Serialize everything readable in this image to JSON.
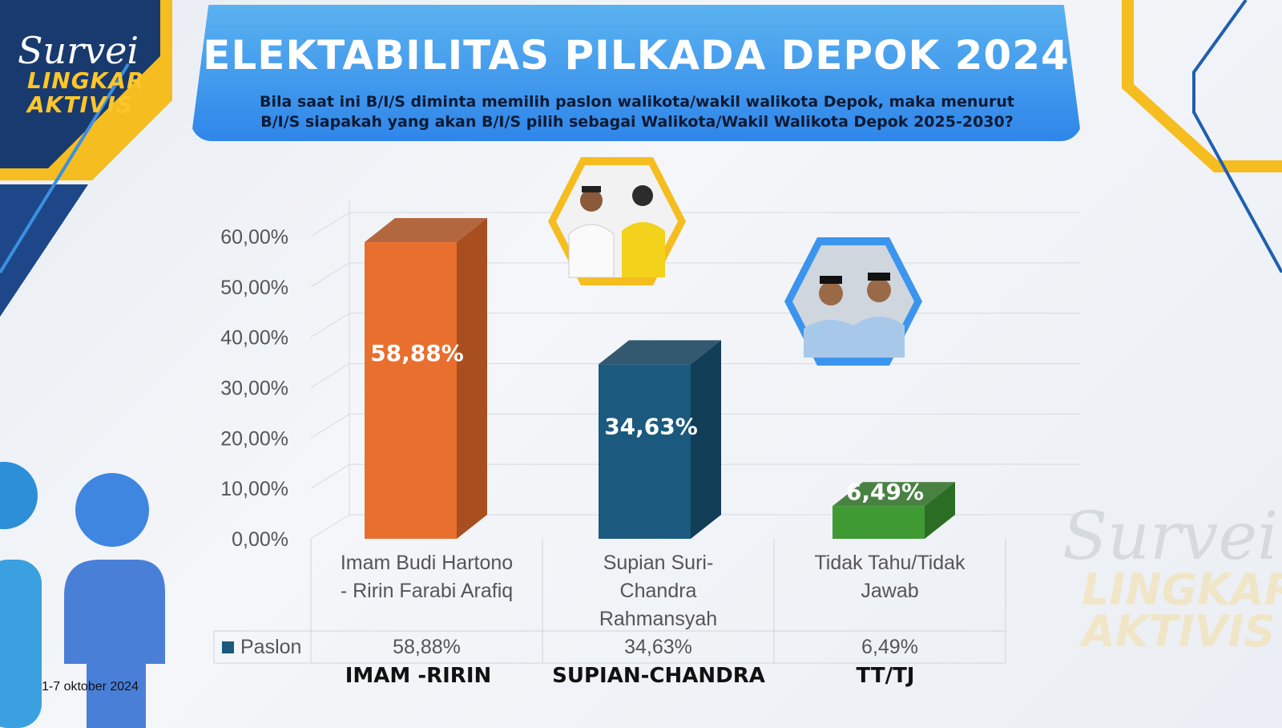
{
  "header": {
    "title": "ELEKTABILITAS PILKADA DEPOK 2024",
    "subtitle_line1": "Bila saat ini B/I/S diminta memilih paslon walikota/wakil walikota Depok, maka menurut",
    "subtitle_line2": "B/I/S siapakah yang akan B/I/S pilih sebagai Walikota/Wakil Walikota Depok 2025-2030?"
  },
  "logo": {
    "line1": "Survei",
    "line2": "LINGKAR",
    "line3": "AKTIVIS"
  },
  "watermark": {
    "line1": "Survei",
    "line2": "LINGKAR",
    "line3": "AKTIVIS"
  },
  "date": "1-7 oktober 2024",
  "short_names": [
    "IMAM -RIRIN",
    "SUPIAN-CHANDRA",
    "TT/TJ"
  ],
  "colors": {
    "banner": "#3b95ee",
    "accent_gold": "#f5bd1f",
    "navy": "#183a6e"
  },
  "chart_data": {
    "type": "bar",
    "categories_lines": [
      [
        "Imam Budi Hartono",
        "- Ririn Farabi Arafiq"
      ],
      [
        "Supian Suri-",
        "Chandra",
        "Rahmansyah"
      ],
      [
        "Tidak Tahu/Tidak",
        "Jawab"
      ]
    ],
    "series": [
      {
        "name": "Paslon",
        "values": [
          58.88,
          34.63,
          6.49
        ]
      }
    ],
    "value_labels": [
      "58,88%",
      "34,63%",
      "6,49%"
    ],
    "bar_colors": [
      "#e86f2e",
      "#1b5a7e",
      "#3f9a34"
    ],
    "bar_side_colors": [
      "#a84e1f",
      "#113d57",
      "#2b6d23"
    ],
    "yticks": [
      "0,00%",
      "10,00%",
      "20,00%",
      "30,00%",
      "40,00%",
      "50,00%",
      "60,00%"
    ],
    "ylim": [
      0,
      60
    ],
    "grid": true,
    "legend_entry": "Paslon",
    "data_table": true
  }
}
